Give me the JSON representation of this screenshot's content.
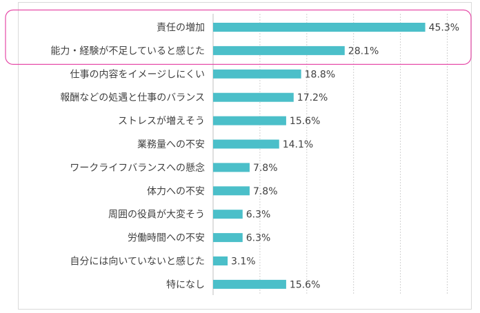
{
  "chart_data": {
    "type": "bar",
    "orientation": "horizontal",
    "categories": [
      "責任の増加",
      "能力・経験が不足していると感じた",
      "仕事の内容をイメージしにくい",
      "報酬などの処遇と仕事のバランス",
      "ストレスが増えそう",
      "業務量への不安",
      "ワークライフバランスへの懸念",
      "体力への不安",
      "周囲の役員が大変そう",
      "労働時間への不安",
      "自分には向いていないと感じた",
      "特になし"
    ],
    "values": [
      45.3,
      28.1,
      18.8,
      17.2,
      15.6,
      14.1,
      7.8,
      7.8,
      6.3,
      6.3,
      3.1,
      15.6
    ],
    "value_labels": [
      "45.3%",
      "28.1%",
      "18.8%",
      "17.2%",
      "15.6%",
      "14.1%",
      "7.8%",
      "7.8%",
      "6.3%",
      "6.3%",
      "3.1%",
      "15.6%"
    ],
    "title": "",
    "xlabel": "",
    "ylabel": "",
    "xlim": [
      0,
      50
    ],
    "grid": "vertical dotted, every 10",
    "bar_color": "#4bbfc9",
    "highlight": {
      "categories": [
        "責任の増加",
        "能力・経験が不足していると感じた"
      ],
      "color": "#e64aa8"
    }
  }
}
